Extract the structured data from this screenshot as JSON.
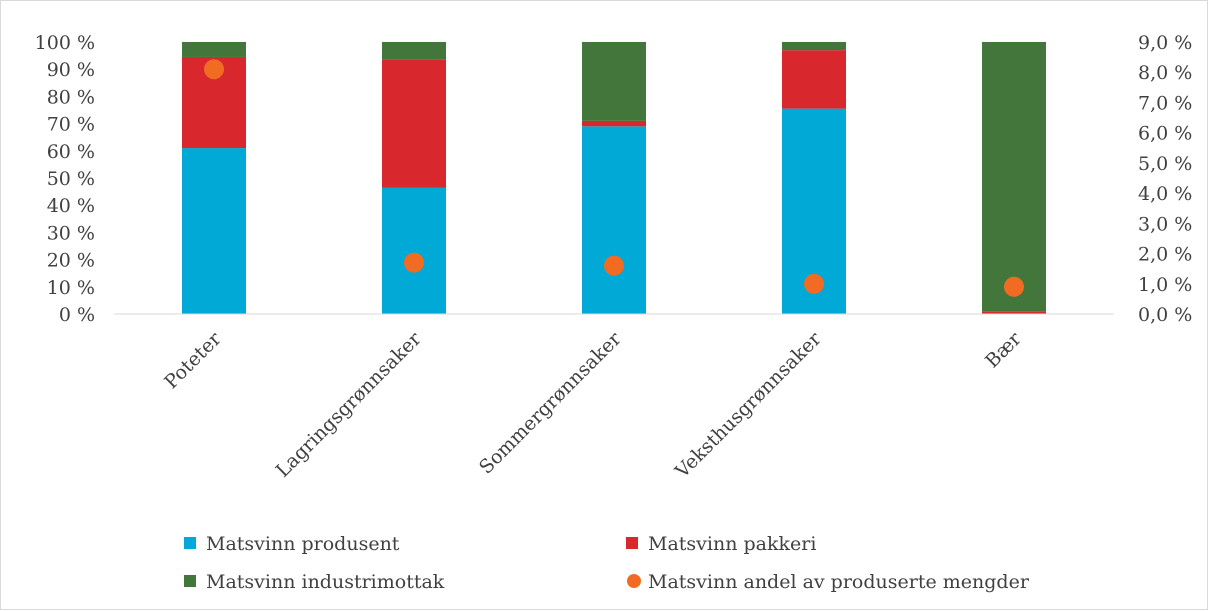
{
  "chart_data": {
    "type": "bar",
    "stacked": true,
    "categories": [
      "Poteter",
      "Lagringsgrønnsaker",
      "Sommergrønnsaker",
      "Veksthusgrønnsaker",
      "Bær"
    ],
    "series": [
      {
        "name": "Matsvinn produsent",
        "axis": "left",
        "color": "#00a9d6",
        "values": [
          61,
          46.5,
          69,
          75.5,
          0
        ]
      },
      {
        "name": "Matsvinn pakkeri",
        "axis": "left",
        "color": "#d9272e",
        "values": [
          33.5,
          47,
          2,
          21.5,
          1
        ]
      },
      {
        "name": "Matsvinn industrimottak",
        "axis": "left",
        "color": "#43763a",
        "values": [
          5.5,
          6.5,
          29,
          3,
          99
        ]
      },
      {
        "name": "Matsvinn andel av produserte mengder",
        "axis": "right",
        "type": "scatter",
        "color": "#f26b22",
        "values": [
          8.1,
          1.7,
          1.6,
          1.0,
          0.9
        ]
      }
    ],
    "y_left": {
      "min": 0,
      "max": 100,
      "step": 10,
      "tick_labels": [
        "0 %",
        "10 %",
        "20 %",
        "30 %",
        "40 %",
        "50 %",
        "60 %",
        "70 %",
        "80 %",
        "90 %",
        "100 %"
      ]
    },
    "y_right": {
      "min": 0,
      "max": 9,
      "step": 1,
      "tick_labels": [
        "0,0 %",
        "1,0 %",
        "2,0 %",
        "3,0 %",
        "4,0 %",
        "5,0 %",
        "6,0 %",
        "7,0 %",
        "8,0 %",
        "9,0 %"
      ]
    },
    "title": "",
    "xlabel": "",
    "ylabel": "",
    "grid": false,
    "legend_position": "bottom"
  }
}
